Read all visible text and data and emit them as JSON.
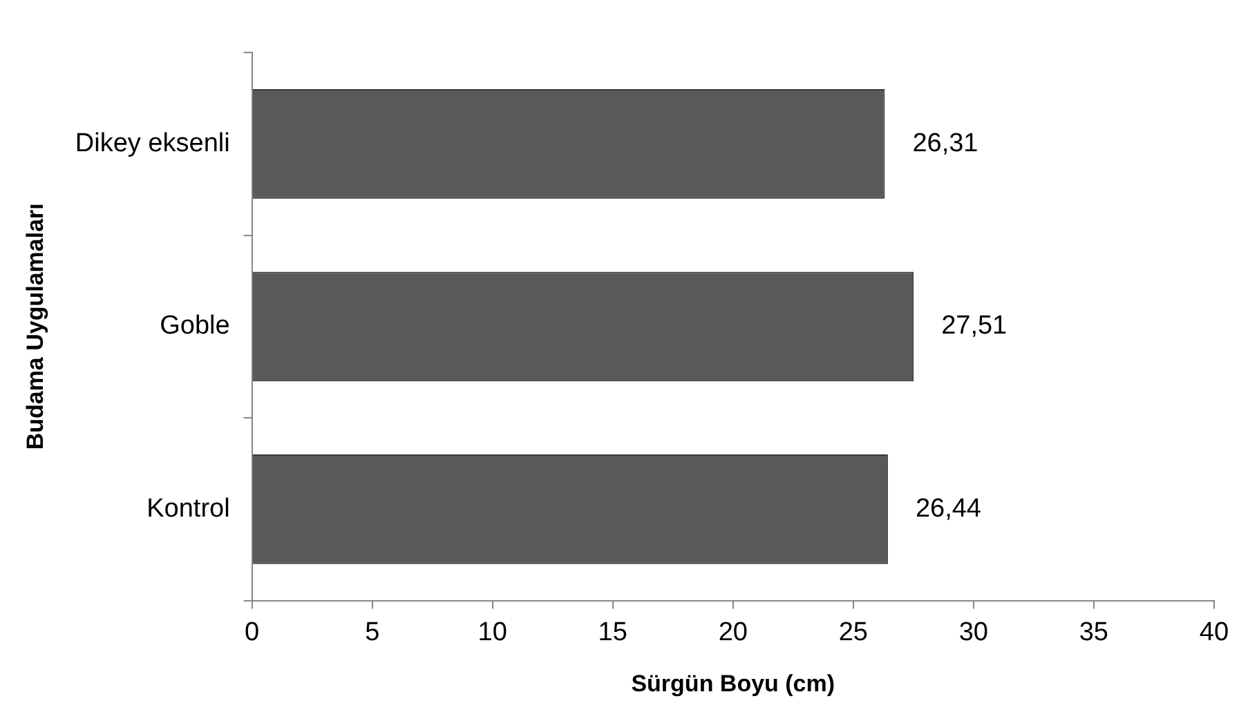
{
  "chart_data": {
    "type": "bar",
    "orientation": "horizontal",
    "xlabel": "Sürgün Boyu (cm)",
    "ylabel": "Budama Uygulamaları",
    "categories": [
      "Dikey eksenli",
      "Goble",
      "Kontrol"
    ],
    "values": [
      26.31,
      27.51,
      26.44
    ],
    "value_labels": [
      "26,31",
      "27,51",
      "26,44"
    ],
    "color": "#595959",
    "xlim": [
      0,
      40
    ],
    "xticks": [
      0,
      5,
      10,
      15,
      20,
      25,
      30,
      35,
      40
    ],
    "grid": false,
    "legend": false
  }
}
